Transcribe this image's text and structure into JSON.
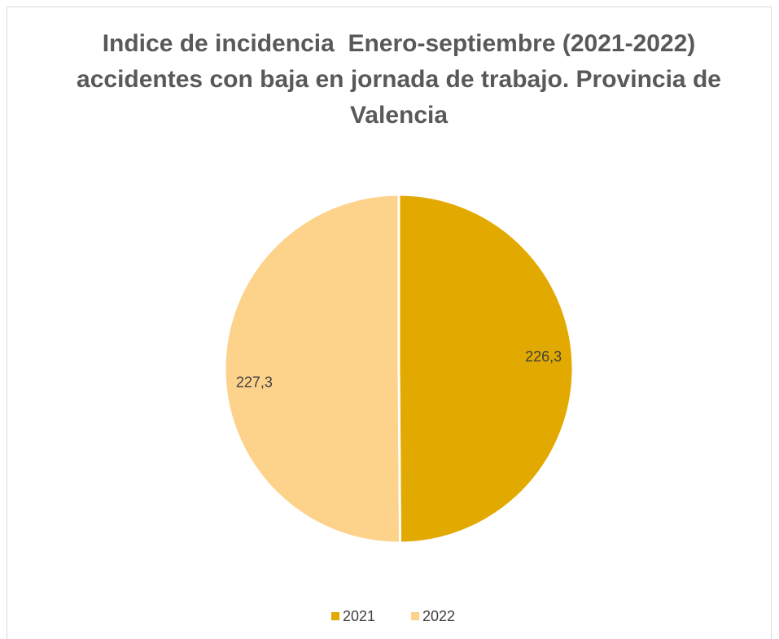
{
  "chart_data": {
    "type": "pie",
    "title": "Indice de incidencia  Enero-septiembre (2021-2022) accidentes con baja en jornada de trabajo. Provincia de Valencia",
    "categories": [
      "2021",
      "2022"
    ],
    "values": [
      226.3,
      227.3
    ],
    "value_labels": [
      "226,3",
      "227,3"
    ],
    "colors": [
      "#e2a900",
      "#fdd28b"
    ],
    "legend": "bottom"
  }
}
